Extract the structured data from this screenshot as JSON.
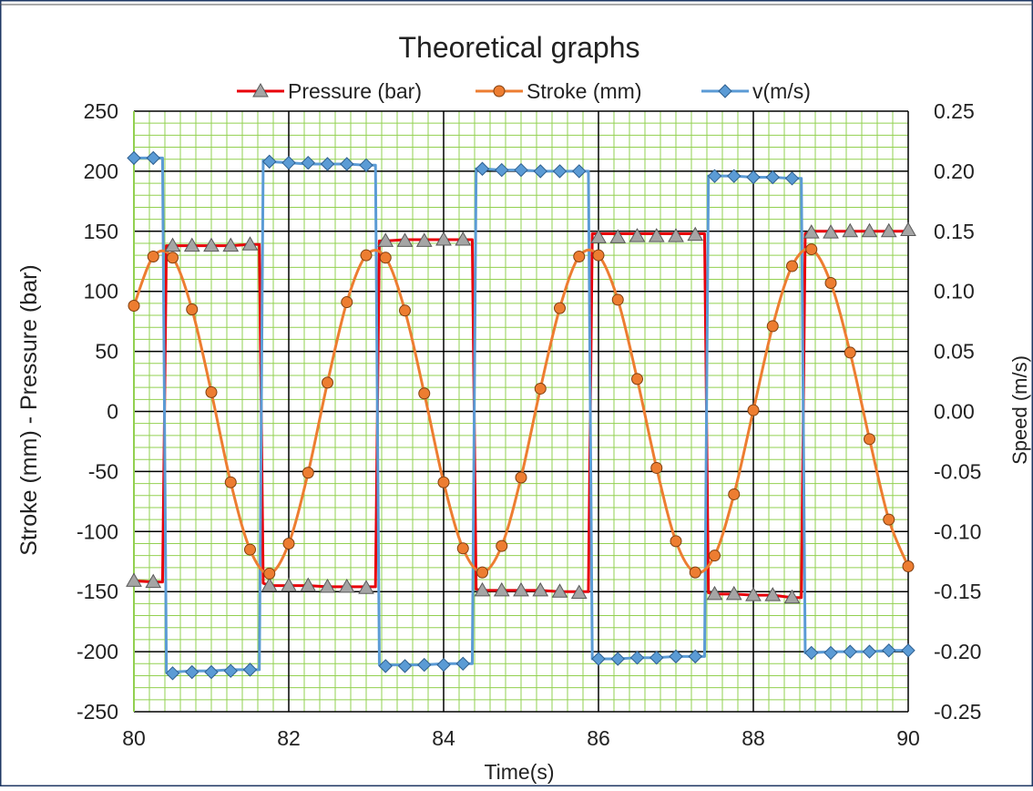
{
  "chart_data": {
    "type": "line",
    "title": "Theoretical graphs",
    "xlabel": "Time(s)",
    "ylabel_left": "Stroke (mm) - Pressure (bar)",
    "ylabel_right": "Speed (m/s)",
    "xlim": [
      80,
      90
    ],
    "ylim_left": [
      -250,
      250
    ],
    "ylim_right": [
      -0.25,
      0.25
    ],
    "x_ticks": [
      "80",
      "82",
      "84",
      "86",
      "88",
      "90"
    ],
    "y_left_ticks": [
      "250",
      "200",
      "150",
      "100",
      "50",
      "0",
      "-50",
      "-100",
      "-150",
      "-200",
      "-250"
    ],
    "y_right_ticks": [
      "0.25",
      "0.20",
      "0.15",
      "0.10",
      "0.05",
      "0.00",
      "-0.05",
      "-0.10",
      "-0.15",
      "-0.20",
      "-0.25"
    ],
    "grid": true,
    "legend_position": "top",
    "series": [
      {
        "name": "Pressure (bar)",
        "axis": "left",
        "color": "#e8000b",
        "marker": "triangle",
        "marker_color": "#a5a5a5",
        "line_x": [
          80,
          80.25,
          80.37,
          80.42,
          80.5,
          80.75,
          81,
          81.25,
          81.5,
          81.62,
          81.67,
          81.75,
          82,
          82.25,
          82.5,
          82.75,
          83,
          83.12,
          83.17,
          83.25,
          83.5,
          83.75,
          84,
          84.25,
          84.37,
          84.42,
          84.5,
          84.75,
          85,
          85.25,
          85.5,
          85.75,
          85.87,
          85.92,
          86,
          86.25,
          86.5,
          86.75,
          87,
          87.25,
          87.37,
          87.42,
          87.5,
          87.75,
          88,
          88.25,
          88.5,
          88.62,
          88.67,
          88.75,
          89,
          89.25,
          89.5,
          89.75,
          90
        ],
        "line_y": [
          -141,
          -142,
          -142,
          138,
          138,
          138,
          138,
          138,
          139,
          139,
          -143,
          -145,
          -145,
          -145,
          -146,
          -146,
          -146,
          -146,
          142,
          142,
          143,
          143,
          143,
          143,
          143,
          -148,
          -149,
          -149,
          -149,
          -149,
          -150,
          -150,
          -150,
          148,
          148,
          148,
          148,
          148,
          148,
          148,
          148,
          -151,
          -152,
          -152,
          -153,
          -153,
          -155,
          -155,
          148,
          150,
          150,
          150,
          150,
          150,
          150
        ],
        "marker_x": [
          80,
          80.25,
          80.5,
          80.75,
          81,
          81.25,
          81.5,
          81.75,
          82,
          82.25,
          82.5,
          82.75,
          83,
          83.25,
          83.5,
          83.75,
          84,
          84.25,
          84.5,
          84.75,
          85,
          85.25,
          85.5,
          85.75,
          86,
          86.25,
          86.5,
          86.75,
          87,
          87.25,
          87.5,
          87.75,
          88,
          88.25,
          88.5,
          88.75,
          89,
          89.25,
          89.5,
          89.75,
          90
        ],
        "marker_y": [
          -141,
          -142,
          138,
          138,
          138,
          138,
          139,
          -145,
          -145,
          -145,
          -146,
          -146,
          -147,
          142,
          142,
          142,
          143,
          143,
          -149,
          -149,
          -149,
          -149,
          -150,
          -151,
          145,
          145,
          146,
          146,
          146,
          147,
          -152,
          -152,
          -153,
          -153,
          -155,
          149,
          149,
          150,
          150,
          150,
          151
        ]
      },
      {
        "name": "Stroke (mm)",
        "axis": "left",
        "color": "#ed7d31",
        "marker": "circle",
        "marker_color": "#ed7d31",
        "x": [
          80,
          80.25,
          80.5,
          80.75,
          81,
          81.25,
          81.5,
          81.75,
          82,
          82.25,
          82.5,
          82.75,
          83,
          83.25,
          83.5,
          83.75,
          84,
          84.25,
          84.5,
          84.75,
          85,
          85.25,
          85.5,
          85.75,
          86,
          86.25,
          86.5,
          86.75,
          87,
          87.25,
          87.5,
          87.75,
          88,
          88.25,
          88.5,
          88.75,
          89,
          89.25,
          89.5,
          89.75,
          90
        ],
        "y": [
          88,
          129,
          128,
          85,
          16,
          -59,
          -115,
          -135,
          -110,
          -51,
          24,
          91,
          130,
          128,
          84,
          15,
          -59,
          -114,
          -134,
          -112,
          -55,
          19,
          86,
          129,
          130,
          93,
          27,
          -47,
          -108,
          -134,
          -120,
          -69,
          1,
          71,
          121,
          135,
          107,
          49,
          -23,
          -90,
          -129
        ]
      },
      {
        "name": "v(m/s)",
        "axis": "right",
        "color": "#5b9bd5",
        "marker": "diamond",
        "marker_color": "#5b9bd5",
        "line_x": [
          80,
          80.25,
          80.37,
          80.42,
          80.5,
          80.75,
          81,
          81.25,
          81.5,
          81.62,
          81.67,
          81.75,
          82,
          82.25,
          82.5,
          82.75,
          83,
          83.12,
          83.17,
          83.25,
          83.5,
          83.75,
          84,
          84.25,
          84.37,
          84.42,
          84.5,
          84.75,
          85,
          85.25,
          85.5,
          85.75,
          85.87,
          85.92,
          86,
          86.25,
          86.5,
          86.75,
          87,
          87.25,
          87.37,
          87.42,
          87.5,
          87.75,
          88,
          88.25,
          88.5,
          88.62,
          88.67,
          88.75,
          89,
          89.25,
          89.5,
          89.75,
          90
        ],
        "line_y": [
          0.211,
          0.211,
          0.211,
          -0.217,
          -0.217,
          -0.216,
          -0.216,
          -0.215,
          -0.215,
          -0.215,
          0.209,
          0.208,
          0.207,
          0.206,
          0.206,
          0.206,
          0.205,
          0.205,
          -0.211,
          -0.211,
          -0.211,
          -0.211,
          -0.21,
          -0.21,
          -0.21,
          0.202,
          0.202,
          0.201,
          0.201,
          0.2,
          0.2,
          0.2,
          0.2,
          -0.206,
          -0.206,
          -0.206,
          -0.205,
          -0.205,
          -0.204,
          -0.204,
          -0.204,
          0.196,
          0.196,
          0.196,
          0.195,
          0.195,
          0.194,
          0.194,
          -0.201,
          -0.201,
          -0.2,
          -0.2,
          -0.2,
          -0.199,
          -0.199
        ],
        "marker_x": [
          80,
          80.25,
          80.5,
          80.75,
          81,
          81.25,
          81.5,
          81.75,
          82,
          82.25,
          82.5,
          82.75,
          83,
          83.25,
          83.5,
          83.75,
          84,
          84.25,
          84.5,
          84.75,
          85,
          85.25,
          85.5,
          85.75,
          86,
          86.25,
          86.5,
          86.75,
          87,
          87.25,
          87.5,
          87.75,
          88,
          88.25,
          88.5,
          88.75,
          89,
          89.25,
          89.5,
          89.75,
          90
        ],
        "marker_y": [
          0.211,
          0.211,
          -0.218,
          -0.217,
          -0.217,
          -0.216,
          -0.215,
          0.208,
          0.207,
          0.207,
          0.206,
          0.206,
          0.205,
          -0.212,
          -0.212,
          -0.211,
          -0.211,
          -0.21,
          0.202,
          0.201,
          0.201,
          0.2,
          0.2,
          0.2,
          -0.206,
          -0.206,
          -0.205,
          -0.205,
          -0.204,
          -0.204,
          0.196,
          0.196,
          0.195,
          0.195,
          0.194,
          -0.201,
          -0.201,
          -0.2,
          -0.2,
          -0.199,
          -0.199
        ]
      }
    ]
  }
}
